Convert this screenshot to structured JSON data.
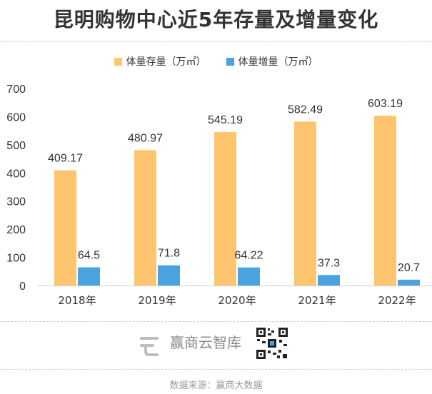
{
  "title": "昆明购物中心近5年存量及增量变化",
  "source": "数据来源：赢商大数据",
  "brand": "赢商云智库",
  "colors": {
    "stock": "#FFC46E",
    "increment": "#4AA3DF",
    "text": "#333333"
  },
  "chart_data": {
    "type": "bar",
    "title": "昆明购物中心近5年存量及增量变化",
    "categories": [
      "2018年",
      "2019年",
      "2020年",
      "2021年",
      "2022年"
    ],
    "series": [
      {
        "name": "体量存量（万㎡）",
        "values": [
          409.17,
          480.97,
          545.19,
          582.49,
          603.19
        ],
        "labels": [
          "409.17",
          "480.97",
          "545.19",
          "582.49",
          "603.19"
        ]
      },
      {
        "name": "体量增量（万㎡）",
        "values": [
          64.5,
          71.8,
          64.22,
          37.3,
          20.7
        ],
        "labels": [
          "64.5",
          "71.8",
          "64.22",
          "37.3",
          "20.7"
        ]
      }
    ],
    "yticks": [
      "0",
      "100",
      "200",
      "300",
      "400",
      "500",
      "600",
      "700"
    ],
    "ylim": [
      0,
      700
    ],
    "legend": "top-center",
    "grid": false
  }
}
